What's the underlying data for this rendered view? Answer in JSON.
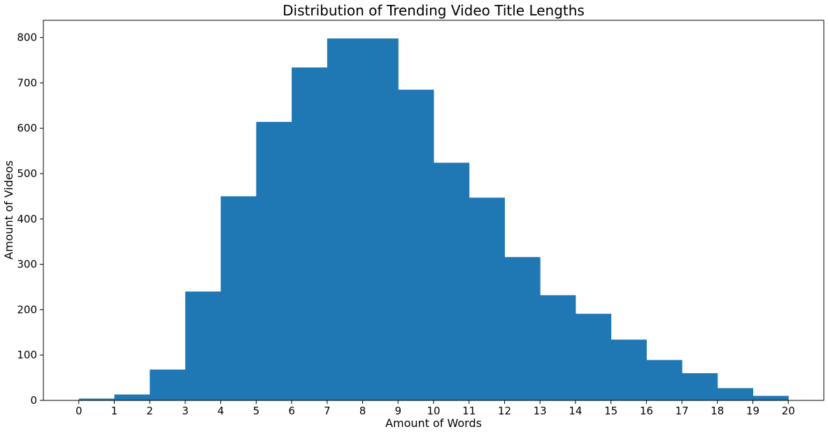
{
  "chart_data": {
    "type": "bar",
    "title": "Distribution of Trending Video Title Lengths",
    "xlabel": "Amount of Words",
    "ylabel": "Amount of Videos",
    "bin_edges": [
      0,
      1,
      2,
      3,
      4,
      5,
      6,
      7,
      8,
      9,
      10,
      11,
      12,
      13,
      14,
      15,
      16,
      17,
      18,
      19,
      20
    ],
    "values": [
      4,
      13,
      68,
      240,
      450,
      614,
      734,
      798,
      798,
      685,
      524,
      447,
      316,
      232,
      191,
      134,
      89,
      60,
      27,
      10
    ],
    "xticks": [
      "0",
      "1",
      "2",
      "3",
      "4",
      "5",
      "6",
      "7",
      "8",
      "9",
      "10",
      "11",
      "12",
      "13",
      "14",
      "15",
      "16",
      "17",
      "18",
      "19",
      "20"
    ],
    "yticks": [
      "0",
      "100",
      "200",
      "300",
      "400",
      "500",
      "600",
      "700",
      "800"
    ],
    "xlim": [
      -1,
      21
    ],
    "ylim": [
      0,
      838
    ],
    "grid": false,
    "bar_color": "#1f77b4"
  }
}
